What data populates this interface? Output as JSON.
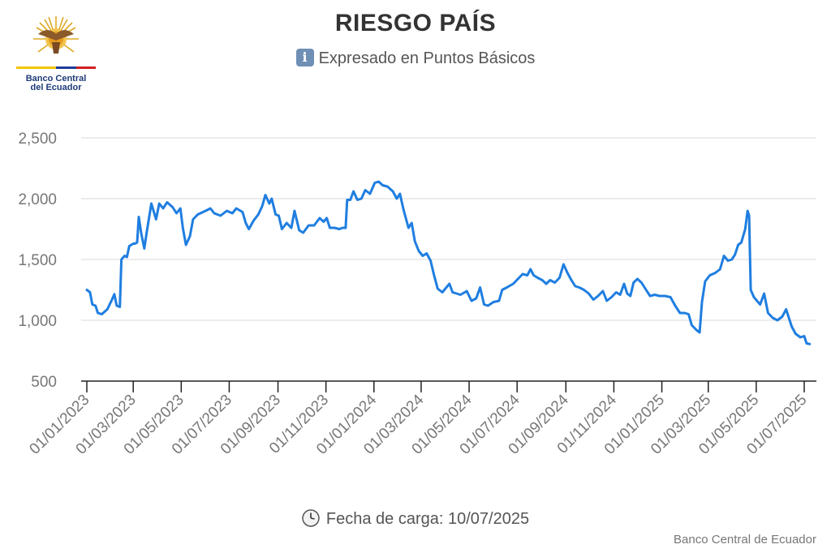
{
  "logo": {
    "line1": "Banco Central",
    "line2": "del Ecuador",
    "icon": "condor-emblem-icon"
  },
  "title": "RIESGO PAÍS",
  "subtitle": "Expresado en Puntos Básicos",
  "footer": {
    "label": "Fecha de carga: 10/07/2025",
    "icon": "clock-icon"
  },
  "credit": "Banco Central de Ecuador",
  "colors": {
    "line": "#1f7ee0",
    "grid": "#d9d9d9",
    "axis": "#222222",
    "tick_label": "#777777"
  },
  "chart_data": {
    "type": "line",
    "title": "RIESGO PAÍS",
    "subtitle": "Expresado en Puntos Básicos",
    "xlabel": "",
    "ylabel": "",
    "ylim": [
      500,
      2500
    ],
    "y_ticks": [
      "500",
      "1,000",
      "1,500",
      "2,000",
      "2,500"
    ],
    "y_tick_values": [
      500,
      1000,
      1500,
      2000,
      2500
    ],
    "x_ticks": [
      "01/01/2023",
      "01/03/2023",
      "01/05/2023",
      "01/07/2023",
      "01/09/2023",
      "01/11/2023",
      "01/01/2024",
      "01/03/2024",
      "01/05/2024",
      "01/07/2024",
      "01/09/2024",
      "01/11/2024",
      "01/01/2025",
      "01/03/2025",
      "01/05/2025",
      "01/07/2025"
    ],
    "grid": true,
    "legend": "none",
    "series": [
      {
        "values": [
          [
            "2023-01-01",
            1250
          ],
          [
            "2023-01-05",
            1230
          ],
          [
            "2023-01-08",
            1130
          ],
          [
            "2023-01-12",
            1120
          ],
          [
            "2023-01-15",
            1060
          ],
          [
            "2023-01-20",
            1050
          ],
          [
            "2023-01-27",
            1090
          ],
          [
            "2023-02-02",
            1170
          ],
          [
            "2023-02-05",
            1215
          ],
          [
            "2023-02-08",
            1120
          ],
          [
            "2023-02-12",
            1110
          ],
          [
            "2023-02-14",
            1500
          ],
          [
            "2023-02-18",
            1530
          ],
          [
            "2023-02-21",
            1520
          ],
          [
            "2023-02-24",
            1610
          ],
          [
            "2023-03-01",
            1630
          ],
          [
            "2023-03-03",
            1630
          ],
          [
            "2023-03-06",
            1640
          ],
          [
            "2023-03-08",
            1850
          ],
          [
            "2023-03-11",
            1720
          ],
          [
            "2023-03-15",
            1590
          ],
          [
            "2023-03-18",
            1720
          ],
          [
            "2023-03-24",
            1960
          ],
          [
            "2023-03-30",
            1830
          ],
          [
            "2023-04-03",
            1960
          ],
          [
            "2023-04-08",
            1920
          ],
          [
            "2023-04-13",
            1970
          ],
          [
            "2023-04-20",
            1930
          ],
          [
            "2023-04-25",
            1880
          ],
          [
            "2023-04-30",
            1920
          ],
          [
            "2023-05-03",
            1760
          ],
          [
            "2023-05-07",
            1620
          ],
          [
            "2023-05-12",
            1690
          ],
          [
            "2023-05-16",
            1830
          ],
          [
            "2023-05-22",
            1870
          ],
          [
            "2023-06-01",
            1900
          ],
          [
            "2023-06-07",
            1920
          ],
          [
            "2023-06-12",
            1880
          ],
          [
            "2023-06-20",
            1860
          ],
          [
            "2023-06-28",
            1900
          ],
          [
            "2023-07-05",
            1880
          ],
          [
            "2023-07-10",
            1920
          ],
          [
            "2023-07-18",
            1890
          ],
          [
            "2023-07-22",
            1800
          ],
          [
            "2023-07-26",
            1750
          ],
          [
            "2023-08-01",
            1820
          ],
          [
            "2023-08-07",
            1870
          ],
          [
            "2023-08-12",
            1940
          ],
          [
            "2023-08-16",
            2030
          ],
          [
            "2023-08-21",
            1960
          ],
          [
            "2023-08-24",
            2000
          ],
          [
            "2023-08-29",
            1870
          ],
          [
            "2023-09-02",
            1860
          ],
          [
            "2023-09-06",
            1750
          ],
          [
            "2023-09-12",
            1800
          ],
          [
            "2023-09-18",
            1760
          ],
          [
            "2023-09-22",
            1900
          ],
          [
            "2023-09-28",
            1740
          ],
          [
            "2023-10-03",
            1720
          ],
          [
            "2023-10-10",
            1780
          ],
          [
            "2023-10-17",
            1780
          ],
          [
            "2023-10-24",
            1840
          ],
          [
            "2023-10-29",
            1810
          ],
          [
            "2023-11-02",
            1840
          ],
          [
            "2023-11-06",
            1760
          ],
          [
            "2023-11-12",
            1760
          ],
          [
            "2023-11-18",
            1750
          ],
          [
            "2023-11-22",
            1760
          ],
          [
            "2023-11-26",
            1760
          ],
          [
            "2023-11-28",
            1990
          ],
          [
            "2023-12-02",
            1990
          ],
          [
            "2023-12-06",
            2060
          ],
          [
            "2023-12-11",
            1990
          ],
          [
            "2023-12-16",
            2000
          ],
          [
            "2023-12-21",
            2070
          ],
          [
            "2023-12-27",
            2040
          ],
          [
            "2024-01-02",
            2130
          ],
          [
            "2024-01-07",
            2140
          ],
          [
            "2024-01-12",
            2110
          ],
          [
            "2024-01-18",
            2100
          ],
          [
            "2024-01-25",
            2060
          ],
          [
            "2024-01-30",
            2000
          ],
          [
            "2024-02-03",
            2040
          ],
          [
            "2024-02-08",
            1900
          ],
          [
            "2024-02-14",
            1760
          ],
          [
            "2024-02-18",
            1800
          ],
          [
            "2024-02-22",
            1650
          ],
          [
            "2024-02-27",
            1570
          ],
          [
            "2024-03-03",
            1530
          ],
          [
            "2024-03-08",
            1550
          ],
          [
            "2024-03-13",
            1490
          ],
          [
            "2024-03-17",
            1380
          ],
          [
            "2024-03-22",
            1260
          ],
          [
            "2024-03-28",
            1230
          ],
          [
            "2024-04-02",
            1270
          ],
          [
            "2024-04-06",
            1300
          ],
          [
            "2024-04-10",
            1230
          ],
          [
            "2024-04-20",
            1210
          ],
          [
            "2024-04-28",
            1240
          ],
          [
            "2024-05-04",
            1160
          ],
          [
            "2024-05-10",
            1180
          ],
          [
            "2024-05-15",
            1270
          ],
          [
            "2024-05-20",
            1130
          ],
          [
            "2024-05-25",
            1120
          ],
          [
            "2024-06-01",
            1150
          ],
          [
            "2024-06-08",
            1160
          ],
          [
            "2024-06-12",
            1250
          ],
          [
            "2024-06-18",
            1270
          ],
          [
            "2024-06-26",
            1300
          ],
          [
            "2024-07-02",
            1340
          ],
          [
            "2024-07-08",
            1380
          ],
          [
            "2024-07-14",
            1370
          ],
          [
            "2024-07-18",
            1420
          ],
          [
            "2024-07-22",
            1370
          ],
          [
            "2024-07-27",
            1350
          ],
          [
            "2024-08-02",
            1330
          ],
          [
            "2024-08-07",
            1300
          ],
          [
            "2024-08-12",
            1330
          ],
          [
            "2024-08-18",
            1310
          ],
          [
            "2024-08-24",
            1350
          ],
          [
            "2024-08-29",
            1460
          ],
          [
            "2024-09-03",
            1390
          ],
          [
            "2024-09-08",
            1330
          ],
          [
            "2024-09-13",
            1280
          ],
          [
            "2024-09-18",
            1270
          ],
          [
            "2024-09-24",
            1250
          ],
          [
            "2024-09-30",
            1220
          ],
          [
            "2024-10-06",
            1170
          ],
          [
            "2024-10-12",
            1200
          ],
          [
            "2024-10-18",
            1240
          ],
          [
            "2024-10-23",
            1160
          ],
          [
            "2024-10-29",
            1190
          ],
          [
            "2024-11-04",
            1230
          ],
          [
            "2024-11-09",
            1210
          ],
          [
            "2024-11-14",
            1300
          ],
          [
            "2024-11-18",
            1220
          ],
          [
            "2024-11-22",
            1200
          ],
          [
            "2024-11-26",
            1310
          ],
          [
            "2024-12-01",
            1340
          ],
          [
            "2024-12-06",
            1310
          ],
          [
            "2024-12-11",
            1260
          ],
          [
            "2024-12-17",
            1200
          ],
          [
            "2024-12-23",
            1210
          ],
          [
            "2024-12-29",
            1200
          ],
          [
            "2025-01-05",
            1200
          ],
          [
            "2025-01-12",
            1190
          ],
          [
            "2025-01-18",
            1120
          ],
          [
            "2025-01-24",
            1060
          ],
          [
            "2025-01-30",
            1060
          ],
          [
            "2025-02-04",
            1050
          ],
          [
            "2025-02-08",
            960
          ],
          [
            "2025-02-14",
            920
          ],
          [
            "2025-02-18",
            900
          ],
          [
            "2025-02-21",
            1150
          ],
          [
            "2025-02-25",
            1320
          ],
          [
            "2025-03-03",
            1370
          ],
          [
            "2025-03-10",
            1390
          ],
          [
            "2025-03-16",
            1420
          ],
          [
            "2025-03-21",
            1530
          ],
          [
            "2025-03-26",
            1490
          ],
          [
            "2025-03-31",
            1500
          ],
          [
            "2025-04-04",
            1540
          ],
          [
            "2025-04-08",
            1620
          ],
          [
            "2025-04-12",
            1640
          ],
          [
            "2025-04-17",
            1750
          ],
          [
            "2025-04-20",
            1900
          ],
          [
            "2025-04-22",
            1860
          ],
          [
            "2025-04-24",
            1250
          ],
          [
            "2025-04-28",
            1190
          ],
          [
            "2025-05-02",
            1160
          ],
          [
            "2025-05-06",
            1130
          ],
          [
            "2025-05-11",
            1220
          ],
          [
            "2025-05-16",
            1060
          ],
          [
            "2025-05-22",
            1020
          ],
          [
            "2025-05-28",
            1000
          ],
          [
            "2025-06-03",
            1030
          ],
          [
            "2025-06-08",
            1090
          ],
          [
            "2025-06-12",
            1010
          ],
          [
            "2025-06-15",
            950
          ],
          [
            "2025-06-20",
            890
          ],
          [
            "2025-06-26",
            860
          ],
          [
            "2025-07-01",
            870
          ],
          [
            "2025-07-04",
            810
          ],
          [
            "2025-07-08",
            805
          ]
        ]
      }
    ]
  }
}
